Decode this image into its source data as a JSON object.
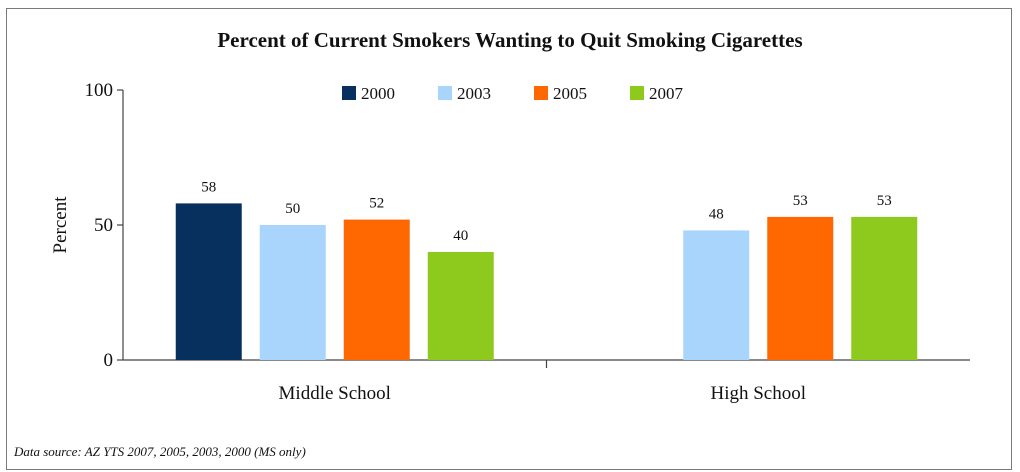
{
  "chart_data": {
    "type": "bar",
    "title": "Percent of Current Smokers Wanting to Quit Smoking Cigarettes",
    "xlabel": "",
    "ylabel": "Percent",
    "ylim": [
      0,
      100
    ],
    "yticks": [
      0,
      50,
      100
    ],
    "categories": [
      "Middle School",
      "High School"
    ],
    "series": [
      {
        "name": "2000",
        "color": "#08305f",
        "values": [
          58,
          null
        ]
      },
      {
        "name": "2003",
        "color": "#a9d4fb",
        "values": [
          50,
          48
        ]
      },
      {
        "name": "2005",
        "color": "#ff6800",
        "values": [
          52,
          53
        ]
      },
      {
        "name": "2007",
        "color": "#8ec91d",
        "values": [
          40,
          53
        ]
      }
    ],
    "legend_position": "top",
    "grid": false
  },
  "footnote": "Data source: AZ YTS 2007, 2005, 2003, 2000 (MS only)"
}
